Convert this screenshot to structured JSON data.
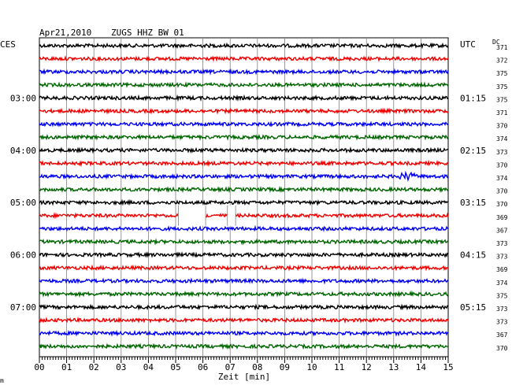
{
  "header": {
    "date": "Apr21,2010",
    "station": "ZUGS HHZ BW 01",
    "left_tz": "CES",
    "right_tz": "UTC",
    "dc_label": "DC",
    "footnote": "m"
  },
  "chart_data": {
    "type": "helicorder",
    "xlabel": "Zeit [min]",
    "x_ticks": [
      "00",
      "01",
      "02",
      "03",
      "04",
      "05",
      "06",
      "07",
      "08",
      "09",
      "10",
      "11",
      "12",
      "13",
      "14",
      "15"
    ],
    "xlim": [
      0,
      15
    ],
    "trace_colors": [
      "#000000",
      "#ee0000",
      "#0000ee",
      "#006600"
    ],
    "rows": 24,
    "left_time_labels": [
      {
        "row": 4,
        "label": "03:00"
      },
      {
        "row": 8,
        "label": "04:00"
      },
      {
        "row": 12,
        "label": "05:00"
      },
      {
        "row": 16,
        "label": "06:00"
      },
      {
        "row": 20,
        "label": "07:00"
      }
    ],
    "right_time_labels": [
      {
        "row": 4,
        "label": "01:15"
      },
      {
        "row": 8,
        "label": "02:15"
      },
      {
        "row": 12,
        "label": "03:15"
      },
      {
        "row": 16,
        "label": "04:15"
      },
      {
        "row": 20,
        "label": "05:15"
      }
    ],
    "dc_offsets": [
      "371",
      "372",
      "375",
      "375",
      "375",
      "371",
      "370",
      "374",
      "373",
      "370",
      "374",
      "370",
      "370",
      "369",
      "367",
      "373",
      "373",
      "369",
      "374",
      "375",
      "373",
      "373",
      "367",
      "370"
    ],
    "data_gaps": [
      {
        "row": 13,
        "start_min": 5.1,
        "end_min": 6.1
      },
      {
        "row": 13,
        "start_min": 6.9,
        "end_min": 7.2
      }
    ],
    "events": [
      {
        "row": 10,
        "min": 13.5
      }
    ]
  }
}
